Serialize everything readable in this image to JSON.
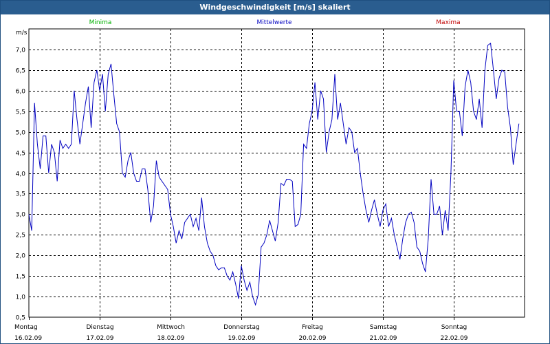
{
  "chart_data": {
    "type": "line",
    "title": "Windgeschwindigkeit [m/s] skaliert",
    "ylabel": "m/s",
    "ylim": [
      0.5,
      7.5
    ],
    "yticks": [
      0.5,
      1.0,
      1.5,
      2.0,
      2.5,
      3.0,
      3.5,
      4.0,
      4.5,
      5.0,
      5.5,
      6.0,
      6.5,
      7.0
    ],
    "ytick_labels": [
      "0,5",
      "1,0",
      "1,5",
      "2,0",
      "2,5",
      "3,0",
      "3,5",
      "4,0",
      "4,5",
      "5,0",
      "5,5",
      "6,0",
      "6,5",
      "7,0"
    ],
    "xlim": [
      0,
      7
    ],
    "grid": true,
    "legend": [
      {
        "label": "Minima",
        "color": "#00b000"
      },
      {
        "label": "Mittelwerte",
        "color": "#0000c0"
      },
      {
        "label": "Maxima",
        "color": "#c00000"
      }
    ],
    "days": [
      {
        "weekday": "Montag",
        "date": "16.02.09"
      },
      {
        "weekday": "Dienstag",
        "date": "17.02.09"
      },
      {
        "weekday": "Mittwoch",
        "date": "18.02.09"
      },
      {
        "weekday": "Donnerstag",
        "date": "19.02.09"
      },
      {
        "weekday": "Freitag",
        "date": "20.02.09"
      },
      {
        "weekday": "Samstag",
        "date": "21.02.09"
      },
      {
        "weekday": "Sonntag",
        "date": "22.02.09"
      }
    ],
    "series": [
      {
        "name": "Mittelwerte",
        "color": "#0000c0",
        "points": [
          [
            0.0,
            3.0
          ],
          [
            0.04,
            2.6
          ],
          [
            0.08,
            5.7
          ],
          [
            0.12,
            4.7
          ],
          [
            0.16,
            4.1
          ],
          [
            0.2,
            4.9
          ],
          [
            0.24,
            4.9
          ],
          [
            0.28,
            4.0
          ],
          [
            0.32,
            4.7
          ],
          [
            0.36,
            4.5
          ],
          [
            0.4,
            3.8
          ],
          [
            0.44,
            4.8
          ],
          [
            0.48,
            4.6
          ],
          [
            0.52,
            4.7
          ],
          [
            0.56,
            4.6
          ],
          [
            0.6,
            4.7
          ],
          [
            0.64,
            6.0
          ],
          [
            0.68,
            5.3
          ],
          [
            0.72,
            4.7
          ],
          [
            0.76,
            5.2
          ],
          [
            0.8,
            5.7
          ],
          [
            0.84,
            6.1
          ],
          [
            0.88,
            5.1
          ],
          [
            0.92,
            6.2
          ],
          [
            0.96,
            6.5
          ],
          [
            1.0,
            6.0
          ],
          [
            1.04,
            6.4
          ],
          [
            1.08,
            5.5
          ],
          [
            1.12,
            6.4
          ],
          [
            1.16,
            6.65
          ],
          [
            1.2,
            5.9
          ],
          [
            1.24,
            5.2
          ],
          [
            1.28,
            5.0
          ],
          [
            1.32,
            4.0
          ],
          [
            1.36,
            3.9
          ],
          [
            1.4,
            4.3
          ],
          [
            1.44,
            4.5
          ],
          [
            1.48,
            4.0
          ],
          [
            1.52,
            3.8
          ],
          [
            1.56,
            3.8
          ],
          [
            1.6,
            4.1
          ],
          [
            1.64,
            4.1
          ],
          [
            1.68,
            3.6
          ],
          [
            1.72,
            2.8
          ],
          [
            1.76,
            3.2
          ],
          [
            1.8,
            4.3
          ],
          [
            1.84,
            3.9
          ],
          [
            1.88,
            3.8
          ],
          [
            1.92,
            3.7
          ],
          [
            1.96,
            3.6
          ],
          [
            2.0,
            3.0
          ],
          [
            2.04,
            2.7
          ],
          [
            2.08,
            2.3
          ],
          [
            2.12,
            2.6
          ],
          [
            2.16,
            2.4
          ],
          [
            2.2,
            2.8
          ],
          [
            2.24,
            2.9
          ],
          [
            2.28,
            3.0
          ],
          [
            2.32,
            2.7
          ],
          [
            2.36,
            2.9
          ],
          [
            2.4,
            2.6
          ],
          [
            2.44,
            3.4
          ],
          [
            2.48,
            2.7
          ],
          [
            2.52,
            2.3
          ],
          [
            2.56,
            2.1
          ],
          [
            2.6,
            2.0
          ],
          [
            2.64,
            1.75
          ],
          [
            2.68,
            1.65
          ],
          [
            2.72,
            1.7
          ],
          [
            2.76,
            1.7
          ],
          [
            2.8,
            1.5
          ],
          [
            2.84,
            1.4
          ],
          [
            2.88,
            1.6
          ],
          [
            2.92,
            1.3
          ],
          [
            2.96,
            0.95
          ],
          [
            3.0,
            1.75
          ],
          [
            3.04,
            1.4
          ],
          [
            3.08,
            1.15
          ],
          [
            3.12,
            1.35
          ],
          [
            3.16,
            1.0
          ],
          [
            3.2,
            0.8
          ],
          [
            3.24,
            1.05
          ],
          [
            3.28,
            2.2
          ],
          [
            3.32,
            2.3
          ],
          [
            3.36,
            2.5
          ],
          [
            3.4,
            2.85
          ],
          [
            3.44,
            2.6
          ],
          [
            3.48,
            2.35
          ],
          [
            3.52,
            2.8
          ],
          [
            3.56,
            3.75
          ],
          [
            3.6,
            3.7
          ],
          [
            3.64,
            3.85
          ],
          [
            3.68,
            3.85
          ],
          [
            3.72,
            3.8
          ],
          [
            3.76,
            2.7
          ],
          [
            3.8,
            2.75
          ],
          [
            3.84,
            3.0
          ],
          [
            3.88,
            4.7
          ],
          [
            3.92,
            4.6
          ],
          [
            3.96,
            5.2
          ],
          [
            4.0,
            5.5
          ],
          [
            4.04,
            6.2
          ],
          [
            4.08,
            5.3
          ],
          [
            4.12,
            6.0
          ],
          [
            4.16,
            5.8
          ],
          [
            4.2,
            4.5
          ],
          [
            4.24,
            5.0
          ],
          [
            4.28,
            5.3
          ],
          [
            4.32,
            6.4
          ],
          [
            4.36,
            5.3
          ],
          [
            4.4,
            5.7
          ],
          [
            4.44,
            5.2
          ],
          [
            4.48,
            4.7
          ],
          [
            4.52,
            5.1
          ],
          [
            4.56,
            5.0
          ],
          [
            4.6,
            4.5
          ],
          [
            4.64,
            4.6
          ],
          [
            4.68,
            4.0
          ],
          [
            4.72,
            3.5
          ],
          [
            4.76,
            3.1
          ],
          [
            4.8,
            2.8
          ],
          [
            4.84,
            3.1
          ],
          [
            4.88,
            3.35
          ],
          [
            4.92,
            3.0
          ],
          [
            4.96,
            2.7
          ],
          [
            5.0,
            3.1
          ],
          [
            5.04,
            3.25
          ],
          [
            5.08,
            2.7
          ],
          [
            5.12,
            2.9
          ],
          [
            5.16,
            2.5
          ],
          [
            5.2,
            2.2
          ],
          [
            5.24,
            1.9
          ],
          [
            5.28,
            2.4
          ],
          [
            5.32,
            2.8
          ],
          [
            5.36,
            3.0
          ],
          [
            5.4,
            3.05
          ],
          [
            5.44,
            2.8
          ],
          [
            5.48,
            2.2
          ],
          [
            5.52,
            2.1
          ],
          [
            5.56,
            1.8
          ],
          [
            5.6,
            1.6
          ],
          [
            5.64,
            2.4
          ],
          [
            5.68,
            3.85
          ],
          [
            5.72,
            3.0
          ],
          [
            5.76,
            3.0
          ],
          [
            5.8,
            3.2
          ],
          [
            5.84,
            2.5
          ],
          [
            5.88,
            3.1
          ],
          [
            5.92,
            2.6
          ],
          [
            5.96,
            4.0
          ],
          [
            6.0,
            6.25
          ],
          [
            6.04,
            5.5
          ],
          [
            6.08,
            5.5
          ],
          [
            6.12,
            4.9
          ],
          [
            6.16,
            6.1
          ],
          [
            6.2,
            6.5
          ],
          [
            6.24,
            6.2
          ],
          [
            6.28,
            5.5
          ],
          [
            6.32,
            5.3
          ],
          [
            6.36,
            5.8
          ],
          [
            6.4,
            5.1
          ],
          [
            6.44,
            6.5
          ],
          [
            6.48,
            7.1
          ],
          [
            6.52,
            7.15
          ],
          [
            6.56,
            6.5
          ],
          [
            6.6,
            5.8
          ],
          [
            6.64,
            6.3
          ],
          [
            6.68,
            6.5
          ],
          [
            6.72,
            6.45
          ],
          [
            6.76,
            5.6
          ],
          [
            6.8,
            5.1
          ],
          [
            6.84,
            4.2
          ],
          [
            6.88,
            4.7
          ],
          [
            6.92,
            5.2
          ]
        ]
      }
    ]
  }
}
